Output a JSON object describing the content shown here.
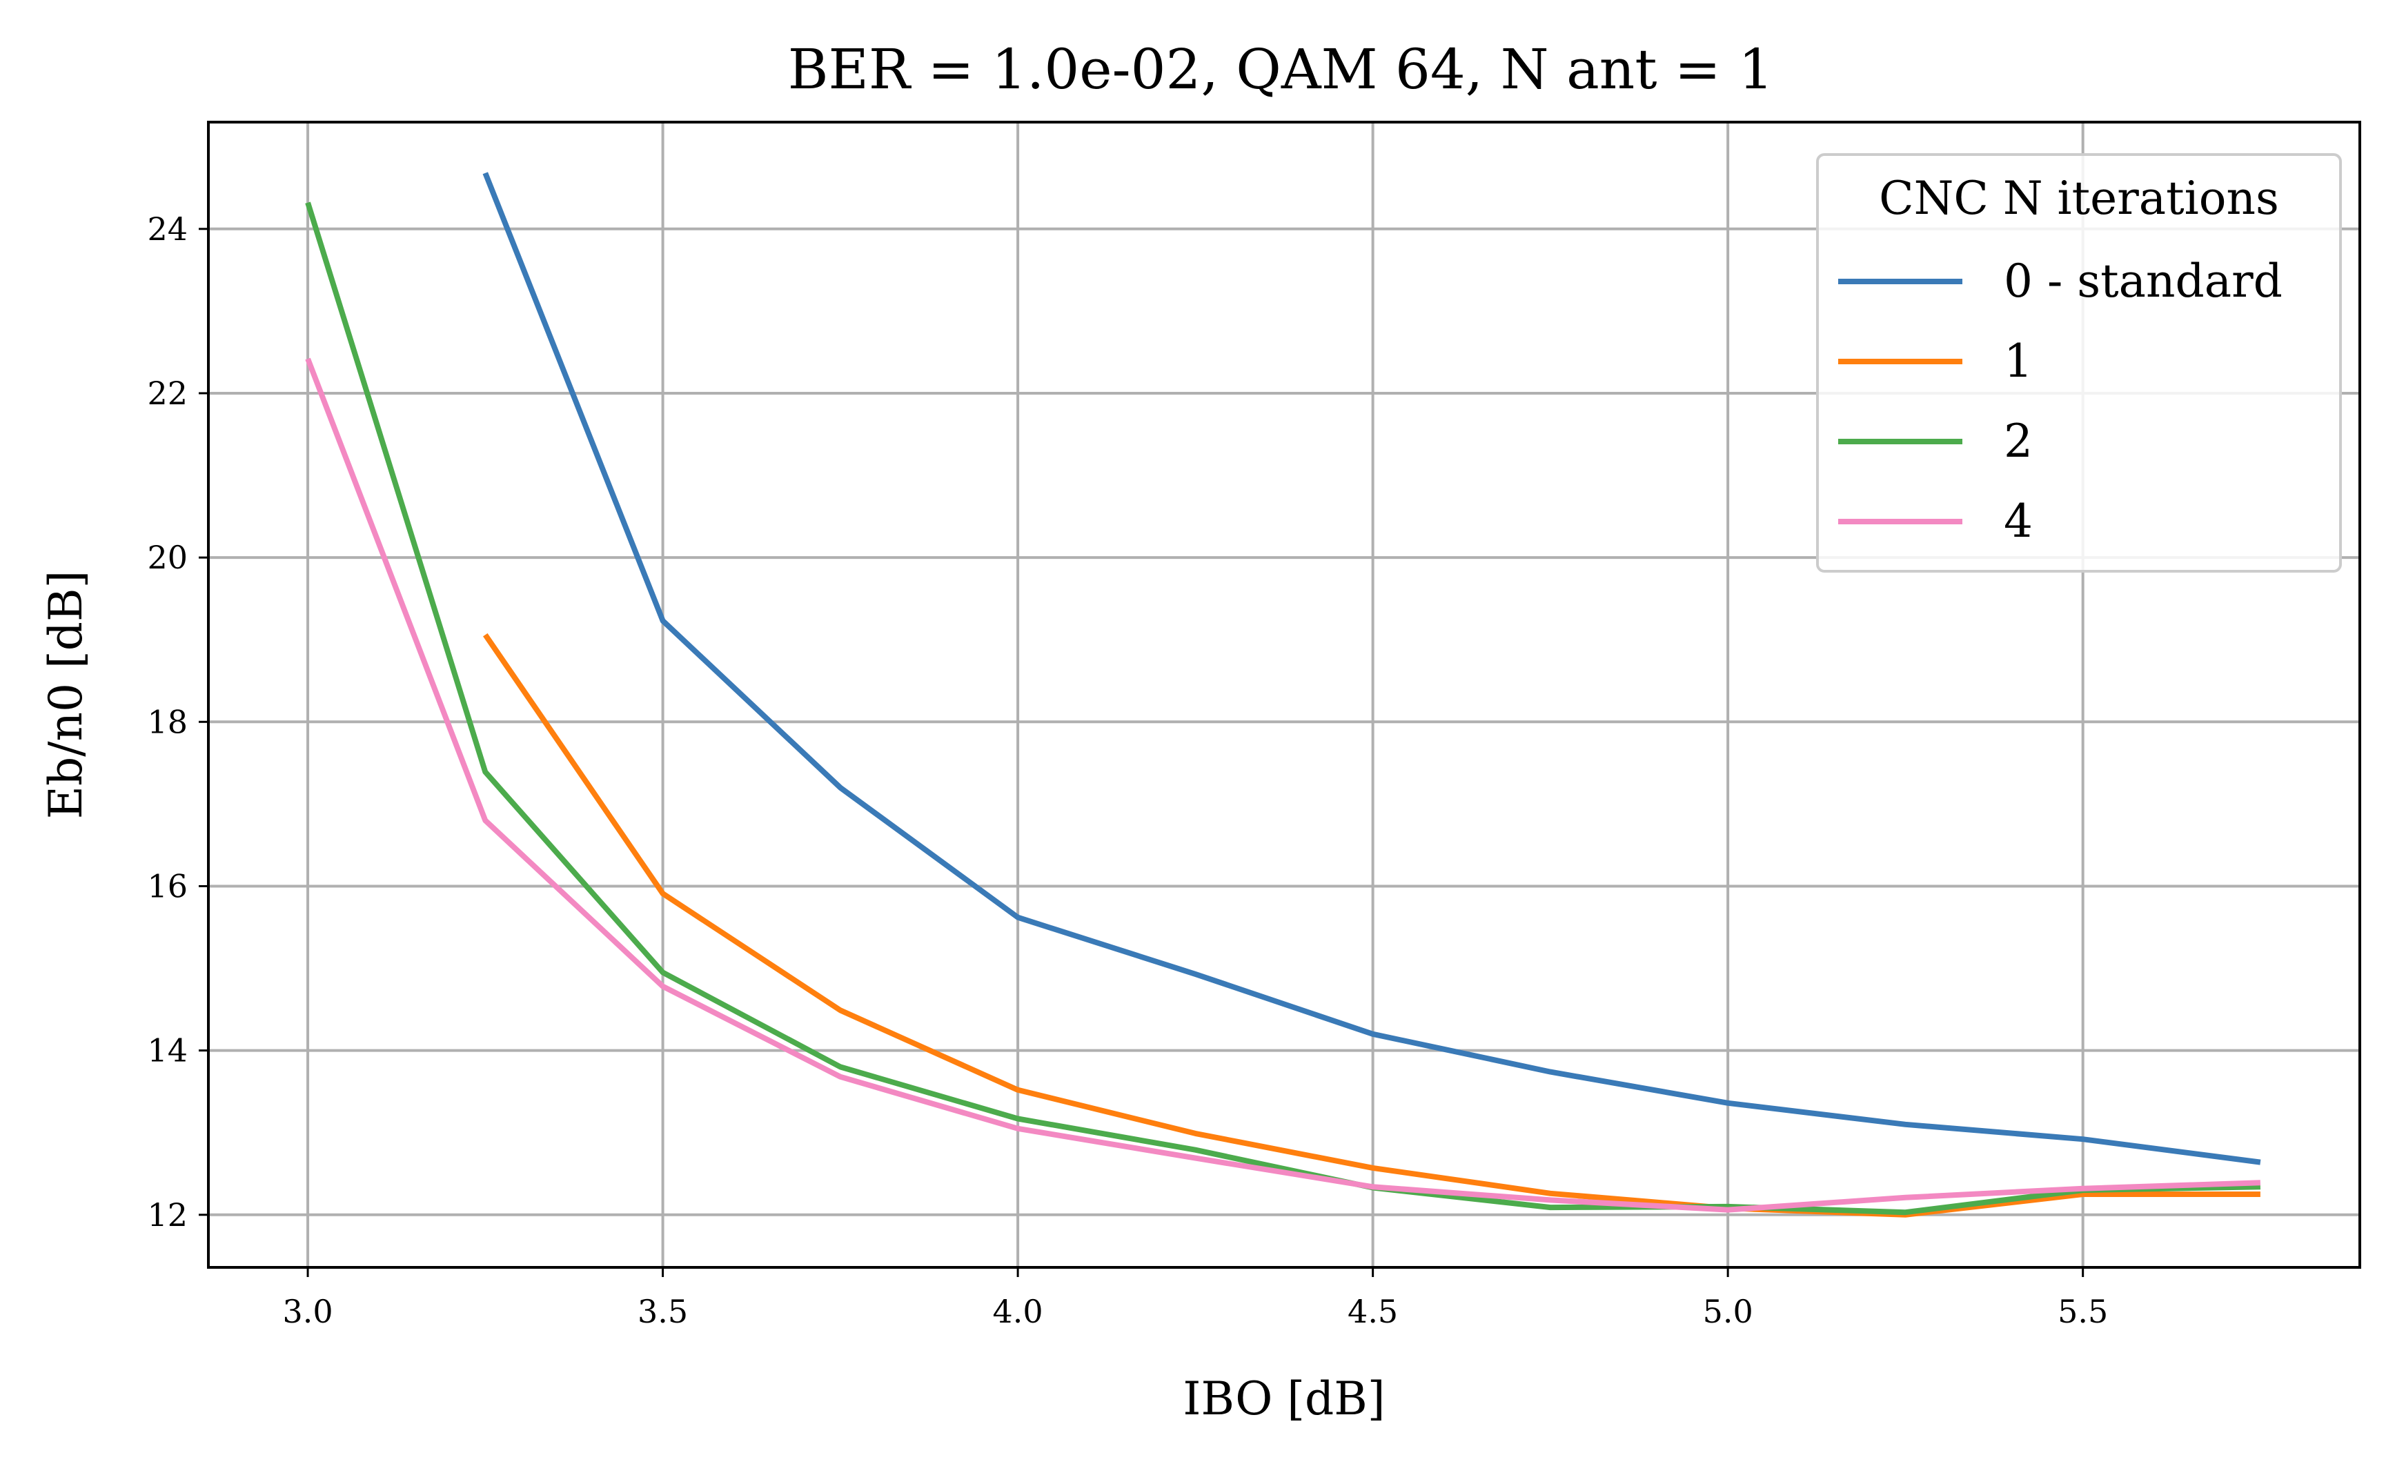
{
  "chart_data": {
    "type": "line",
    "title": "BER = 1.0e-02, QAM 64, N ant = 1",
    "xlabel": "IBO [dB]",
    "ylabel": "Eb/n0 [dB]",
    "xlim": [
      2.86,
      5.89
    ],
    "ylim": [
      11.36,
      25.3
    ],
    "xticks": [
      3.0,
      3.5,
      4.0,
      4.5,
      5.0,
      5.5
    ],
    "xtick_labels": [
      "3.0",
      "3.5",
      "4.0",
      "4.5",
      "5.0",
      "5.5"
    ],
    "yticks": [
      12,
      14,
      16,
      18,
      20,
      22,
      24
    ],
    "ytick_labels": [
      "12",
      "14",
      "16",
      "18",
      "20",
      "22",
      "24"
    ],
    "grid": true,
    "legend": {
      "title": "CNC N iterations",
      "placement": "top-right"
    },
    "series": [
      {
        "name": "0 - standard",
        "color": "#3a7ab7",
        "x": [
          3.25,
          3.5,
          3.75,
          4.0,
          4.25,
          4.5,
          4.75,
          5.0,
          5.25,
          5.5,
          5.75
        ],
        "y": [
          24.68,
          19.23,
          17.2,
          15.62,
          14.93,
          14.2,
          13.74,
          13.36,
          13.1,
          12.92,
          12.64
        ]
      },
      {
        "name": "1",
        "color": "#ff7f0e",
        "x": [
          3.25,
          3.5,
          3.75,
          4.0,
          4.25,
          4.5,
          4.75,
          5.0,
          5.25,
          5.5,
          5.75
        ],
        "y": [
          19.06,
          15.91,
          14.49,
          13.52,
          12.99,
          12.57,
          12.26,
          12.08,
          12.0,
          12.25,
          12.25
        ]
      },
      {
        "name": "2",
        "color": "#4cab4c",
        "x": [
          3.0,
          3.25,
          3.5,
          3.75,
          4.0,
          4.25,
          4.5,
          4.75,
          5.0,
          5.25,
          5.5,
          5.75
        ],
        "y": [
          24.32,
          17.39,
          14.95,
          13.8,
          13.17,
          12.79,
          12.33,
          12.09,
          12.1,
          12.03,
          12.3,
          12.34
        ]
      },
      {
        "name": "4",
        "color": "#f389c2",
        "x": [
          3.0,
          3.25,
          3.5,
          3.75,
          4.0,
          4.25,
          4.5,
          4.75,
          5.0,
          5.25,
          5.5,
          5.75
        ],
        "y": [
          22.42,
          16.8,
          14.78,
          13.68,
          13.05,
          12.69,
          12.34,
          12.18,
          12.06,
          12.21,
          12.32,
          12.39
        ]
      }
    ]
  }
}
